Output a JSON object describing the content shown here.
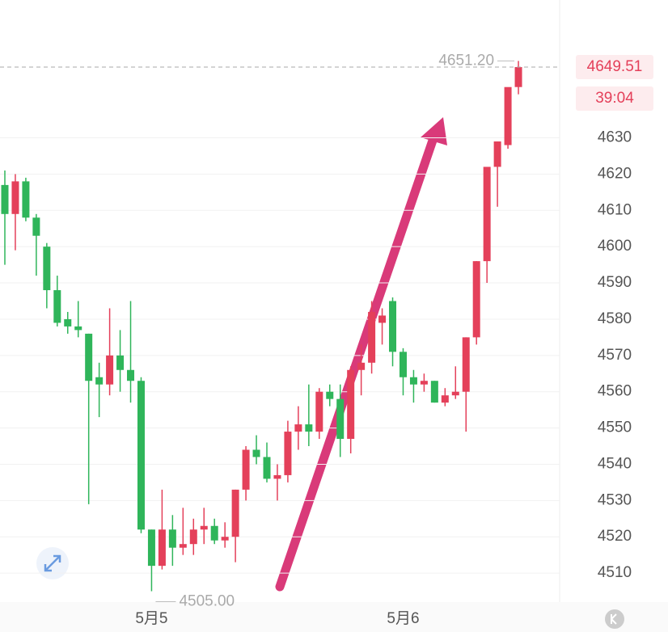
{
  "chart_data": {
    "type": "candlestick",
    "x": [
      null,
      null,
      null,
      null,
      null,
      null,
      null,
      null,
      null,
      null,
      null,
      null,
      null,
      null,
      "5月5",
      null,
      null,
      null,
      null,
      null,
      null,
      null,
      null,
      null,
      null,
      null,
      null,
      null,
      null,
      null,
      null,
      null,
      null,
      null,
      null,
      null,
      null,
      null,
      "5月6",
      null,
      null,
      null,
      null,
      null,
      null,
      null,
      null,
      null,
      null,
      null
    ],
    "open": [
      4617,
      4609,
      4618,
      4608,
      4600,
      4588,
      4580,
      4578,
      4576,
      4564,
      4562,
      4570,
      4566,
      4563,
      4522,
      4512,
      4522,
      4517,
      4518,
      4522,
      4523,
      4519,
      4520,
      4533,
      4544,
      4542,
      4536,
      4537,
      4549,
      4551,
      4549,
      4560,
      4558,
      4547,
      4566,
      4568,
      4579,
      4585,
      4571,
      4564,
      4562,
      4563,
      4557,
      4559,
      4560,
      4575,
      4596,
      4622,
      4628,
      4644
    ],
    "high": [
      4621,
      4620,
      4619,
      4609,
      4601,
      4592,
      4582,
      4585,
      4576,
      4568,
      4583,
      4577,
      4585,
      4564,
      4522,
      4533,
      4526,
      4528,
      4525,
      4528,
      4525,
      4524,
      4533,
      4545,
      4548,
      4546,
      4540,
      4552,
      4556,
      4562,
      4561,
      4562,
      4562,
      4567,
      4573,
      4585,
      4583,
      4586,
      4572,
      4566,
      4565,
      4563,
      4561,
      4567,
      4575,
      4596,
      4622,
      4629,
      4643,
      4651.2
    ],
    "low": [
      4595,
      4599,
      4607,
      4592,
      4583,
      4578,
      4576,
      4575,
      4529,
      4553,
      4559,
      4560,
      4557,
      4521,
      4505,
      4511,
      4512,
      4515,
      4515,
      4518,
      4518,
      4517,
      4513,
      4530,
      4540,
      4535,
      4530,
      4535,
      4544,
      4545,
      4547,
      4556,
      4542,
      4543,
      4559,
      4565,
      4573,
      4567,
      4559,
      4557,
      4560,
      4557,
      4556,
      4558,
      4549,
      4573,
      4590,
      4611,
      4627,
      4642
    ],
    "close": [
      4609,
      4618,
      4608,
      4603,
      4588,
      4579,
      4578,
      4577,
      4563,
      4562,
      4570,
      4566,
      4563,
      4522,
      4512,
      4522,
      4517,
      4518,
      4522,
      4523,
      4519,
      4520,
      4533,
      4544,
      4542,
      4536,
      4537,
      4549,
      4551,
      4549,
      4560,
      4558,
      4547,
      4566,
      4568,
      4582,
      4581,
      4571,
      4564,
      4562,
      4563,
      4557,
      4559,
      4560,
      4575,
      4596,
      4622,
      4629,
      4644,
      4649.51
    ],
    "up_color": "#e4405a",
    "down_color": "#2fb55a",
    "ylim": [
      4502,
      4668
    ],
    "yticks": [
      4510,
      4520,
      4530,
      4540,
      4550,
      4560,
      4570,
      4580,
      4590,
      4600,
      4610,
      4620,
      4630
    ],
    "grid": true,
    "last_price": 4649.51,
    "countdown": "39:04",
    "max_marker": {
      "value": 4651.2,
      "label": "4651.20"
    },
    "min_marker": {
      "value": 4505,
      "label": "4505.00"
    }
  }
}
